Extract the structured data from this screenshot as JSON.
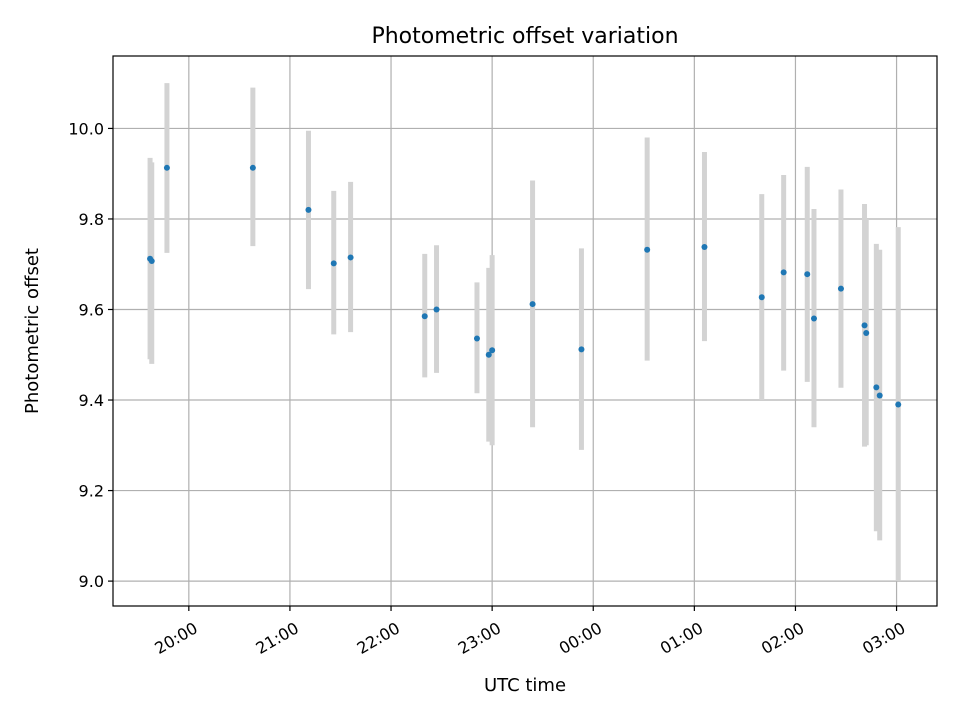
{
  "chart_data": {
    "type": "scatter",
    "title": "Photometric offset variation",
    "xlabel": "UTC time",
    "ylabel": "Photometric offset",
    "grid": true,
    "x_unit": "hours (UTC, continuing past midnight)",
    "xlim": [
      19.25,
      27.4
    ],
    "ylim": [
      8.945,
      10.16
    ],
    "xticks": [
      {
        "value": 20,
        "label": "20:00"
      },
      {
        "value": 21,
        "label": "21:00"
      },
      {
        "value": 22,
        "label": "22:00"
      },
      {
        "value": 23,
        "label": "23:00"
      },
      {
        "value": 24,
        "label": "00:00"
      },
      {
        "value": 25,
        "label": "01:00"
      },
      {
        "value": 26,
        "label": "02:00"
      },
      {
        "value": 27,
        "label": "03:00"
      }
    ],
    "yticks": [
      {
        "value": 9.0,
        "label": "9.0"
      },
      {
        "value": 9.2,
        "label": "9.2"
      },
      {
        "value": 9.4,
        "label": "9.4"
      },
      {
        "value": 9.6,
        "label": "9.6"
      },
      {
        "value": 9.8,
        "label": "9.8"
      },
      {
        "value": 10.0,
        "label": "10.0"
      }
    ],
    "series": [
      {
        "marker_color": "#1f77b4",
        "errorbar_color": "#d3d3d3",
        "points": [
          {
            "x": "19:37",
            "y": 9.712,
            "low": 9.49,
            "high": 9.935
          },
          {
            "x": "19:38",
            "y": 9.707,
            "low": 9.48,
            "high": 9.925
          },
          {
            "x": "19:47",
            "y": 9.913,
            "low": 9.725,
            "high": 10.1
          },
          {
            "x": "20:38",
            "y": 9.913,
            "low": 9.74,
            "high": 10.09
          },
          {
            "x": "21:11",
            "y": 9.82,
            "low": 9.645,
            "high": 9.995
          },
          {
            "x": "21:26",
            "y": 9.702,
            "low": 9.545,
            "high": 9.862
          },
          {
            "x": "21:36",
            "y": 9.715,
            "low": 9.55,
            "high": 9.882
          },
          {
            "x": "22:20",
            "y": 9.585,
            "low": 9.45,
            "high": 9.723
          },
          {
            "x": "22:27",
            "y": 9.6,
            "low": 9.46,
            "high": 9.742
          },
          {
            "x": "22:51",
            "y": 9.536,
            "low": 9.415,
            "high": 9.66
          },
          {
            "x": "22:58",
            "y": 9.5,
            "low": 9.308,
            "high": 9.692
          },
          {
            "x": "23:00",
            "y": 9.51,
            "low": 9.3,
            "high": 9.72
          },
          {
            "x": "23:24",
            "y": 9.612,
            "low": 9.34,
            "high": 9.885
          },
          {
            "x": "23:53",
            "y": 9.512,
            "low": 9.29,
            "high": 9.735
          },
          {
            "x": "00:32",
            "y": 9.732,
            "low": 9.487,
            "high": 9.98
          },
          {
            "x": "01:06",
            "y": 9.738,
            "low": 9.53,
            "high": 9.948
          },
          {
            "x": "01:40",
            "y": 9.627,
            "low": 9.4,
            "high": 9.855
          },
          {
            "x": "01:53",
            "y": 9.682,
            "low": 9.465,
            "high": 9.897
          },
          {
            "x": "02:07",
            "y": 9.678,
            "low": 9.44,
            "high": 9.915
          },
          {
            "x": "02:11",
            "y": 9.58,
            "low": 9.34,
            "high": 9.822
          },
          {
            "x": "02:27",
            "y": 9.646,
            "low": 9.427,
            "high": 9.865
          },
          {
            "x": "02:41",
            "y": 9.565,
            "low": 9.297,
            "high": 9.833
          },
          {
            "x": "02:42",
            "y": 9.548,
            "low": 9.3,
            "high": 9.8
          },
          {
            "x": "02:48",
            "y": 9.428,
            "low": 9.11,
            "high": 9.745
          },
          {
            "x": "02:50",
            "y": 9.41,
            "low": 9.09,
            "high": 9.732
          },
          {
            "x": "03:01",
            "y": 9.39,
            "low": 9.0,
            "high": 9.782
          }
        ]
      }
    ]
  }
}
